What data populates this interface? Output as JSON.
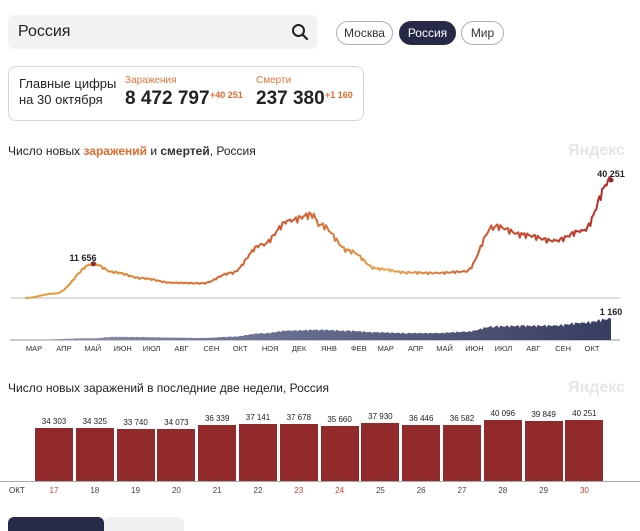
{
  "search": {
    "value": "Россия"
  },
  "regions": [
    {
      "label": "Москва",
      "active": false
    },
    {
      "label": "Россия",
      "active": true
    },
    {
      "label": "Мир",
      "active": false
    }
  ],
  "stats": {
    "title": "Главные цифры на 30 октября",
    "infections_label": "Заражения",
    "infections_total": "8 472 797",
    "infections_delta": "+40 251",
    "deaths_label": "Смерти",
    "deaths_total": "237 380",
    "deaths_delta": "+1 160"
  },
  "chart1": {
    "title_prefix": "Число новых ",
    "title_infections": "заражений",
    "title_mid": " и ",
    "title_deaths": "смертей",
    "title_suffix": ", Россия",
    "watermark": "Яндекс",
    "peak1_label": "11 656",
    "last_label": "40 251",
    "deaths_last_label": "1 160",
    "months": [
      "МАР",
      "АПР",
      "МАЙ",
      "ИЮН",
      "ИЮЛ",
      "АВГ",
      "СЕН",
      "ОКТ",
      "НОЯ",
      "ДЕК",
      "ЯНВ",
      "ФЕВ",
      "МАР",
      "АПР",
      "МАЙ",
      "ИЮН",
      "ИЮЛ",
      "АВГ",
      "СЕН",
      "ОКТ"
    ]
  },
  "chart2": {
    "title": "Число новых заражений в последние две недели, Россия",
    "watermark": "Яндекс",
    "axis_month": "ОКТ"
  },
  "chart_data": [
    {
      "type": "line",
      "series": [
        {
          "name": "заражений",
          "color": "#e26a2c",
          "x": [
            "2020-03-01",
            "2020-04-01",
            "2020-05-11",
            "2020-06-01",
            "2020-07-01",
            "2020-08-01",
            "2020-09-01",
            "2020-10-01",
            "2020-11-01",
            "2020-12-01",
            "2020-12-24",
            "2021-01-01",
            "2021-02-01",
            "2021-03-01",
            "2021-04-01",
            "2021-05-01",
            "2021-06-01",
            "2021-07-01",
            "2021-08-01",
            "2021-09-01",
            "2021-10-01",
            "2021-10-30"
          ],
          "values": [
            0,
            1500,
            11656,
            8800,
            6700,
            5200,
            5000,
            8500,
            18000,
            26500,
            28500,
            25000,
            16000,
            10000,
            8700,
            8500,
            9000,
            24500,
            21500,
            19500,
            23000,
            40251
          ]
        },
        {
          "name": "смертей",
          "color": "#3a4063",
          "x": [
            "2020-03-01",
            "2020-05-11",
            "2020-06-01",
            "2020-07-01",
            "2020-08-01",
            "2020-09-01",
            "2020-10-01",
            "2020-11-01",
            "2020-12-01",
            "2021-01-01",
            "2021-02-01",
            "2021-03-01",
            "2021-04-01",
            "2021-05-01",
            "2021-06-01",
            "2021-07-01",
            "2021-08-01",
            "2021-09-01",
            "2021-10-01",
            "2021-10-30"
          ],
          "values": [
            0,
            100,
            170,
            160,
            130,
            110,
            180,
            360,
            520,
            560,
            500,
            420,
            380,
            380,
            450,
            750,
            780,
            790,
            950,
            1160
          ]
        }
      ],
      "labels": {
        "peak": "11 656",
        "last": "40 251",
        "deaths_last": "1 160"
      }
    },
    {
      "type": "bar",
      "categories": [
        "17",
        "18",
        "19",
        "20",
        "21",
        "22",
        "23",
        "24",
        "25",
        "26",
        "27",
        "28",
        "29",
        "30"
      ],
      "values": [
        34303,
        34325,
        33740,
        34073,
        36339,
        37141,
        37678,
        35660,
        37930,
        36446,
        36582,
        40096,
        39849,
        40251
      ],
      "value_labels": [
        "34 303",
        "34 325",
        "33 740",
        "34 073",
        "36 339",
        "37 141",
        "37 678",
        "35 660",
        "37 930",
        "36 446",
        "36 582",
        "40 096",
        "39 849",
        "40 251"
      ],
      "weekend": [
        true,
        false,
        false,
        false,
        false,
        false,
        true,
        true,
        false,
        false,
        false,
        false,
        false,
        true
      ],
      "color": "#922a2c"
    }
  ]
}
